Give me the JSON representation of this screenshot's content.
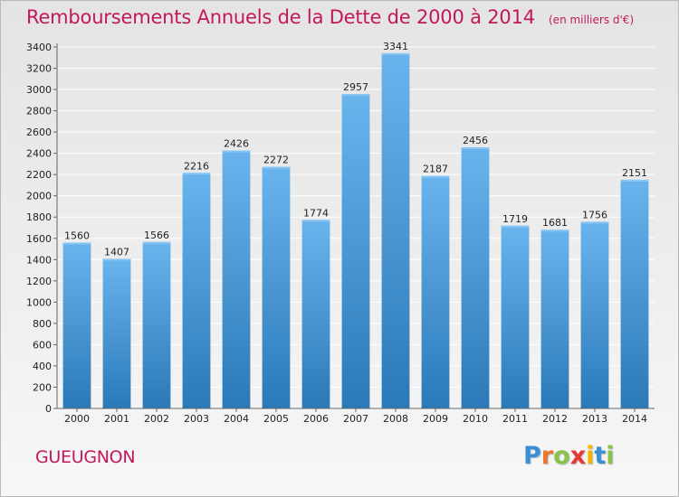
{
  "title": "Remboursements Annuels de la Dette de 2000 à 2014",
  "unit": "(en milliers d'€)",
  "commune": "GUEUGNON",
  "logo": {
    "text": "Proxiti",
    "letters": [
      {
        "ch": "P",
        "color": "#3a8fd6"
      },
      {
        "ch": "r",
        "color": "#e8762c"
      },
      {
        "ch": "o",
        "color": "#8bc34a"
      },
      {
        "ch": "x",
        "color": "#e53935"
      },
      {
        "ch": "i",
        "color": "#f4b400"
      },
      {
        "ch": "t",
        "color": "#3a8fd6"
      },
      {
        "ch": "i",
        "color": "#8bc34a"
      }
    ]
  },
  "colors": {
    "title": "#c2185b",
    "bar_top": "#6ab4ee",
    "bar_bottom": "#2a79b8",
    "grid": "#ffffff",
    "axis": "#666666"
  },
  "chart_data": {
    "type": "bar",
    "categories": [
      "2000",
      "2001",
      "2002",
      "2003",
      "2004",
      "2005",
      "2006",
      "2007",
      "2008",
      "2009",
      "2010",
      "2011",
      "2012",
      "2013",
      "2014"
    ],
    "values": [
      1560,
      1407,
      1566,
      2216,
      2426,
      2272,
      1774,
      2957,
      3341,
      2187,
      2456,
      1719,
      1681,
      1756,
      2151
    ],
    "ylim": [
      0,
      3400
    ],
    "yticks": [
      0,
      200,
      400,
      600,
      800,
      1000,
      1200,
      1400,
      1600,
      1800,
      2000,
      2200,
      2400,
      2600,
      2800,
      3000,
      3200,
      3400
    ],
    "grid": true,
    "data_labels": true
  }
}
